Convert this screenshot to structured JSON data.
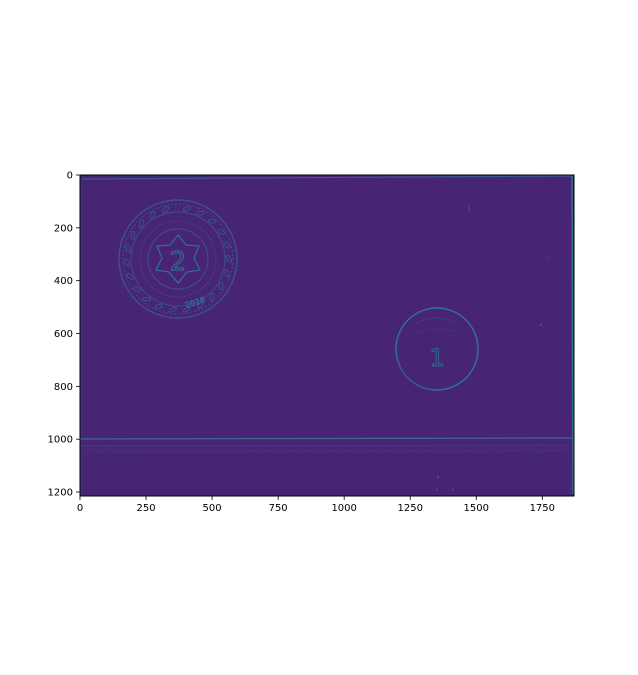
{
  "figure": {
    "background": "#ffffff",
    "image": {
      "description_icon": "edge-filtered-coins-image",
      "colormap": "viridis",
      "base_color": "#482475",
      "edge_color": "#3b528b",
      "bright_edge_color": "#2a788e",
      "width_units": 1870,
      "height_units": 1215
    },
    "x_axis": {
      "range": [
        0,
        1870
      ],
      "ticks": [
        0,
        250,
        500,
        750,
        1000,
        1250,
        1500,
        1750
      ],
      "tick_labels": [
        "0",
        "250",
        "500",
        "750",
        "1000",
        "1250",
        "1500",
        "1750"
      ]
    },
    "y_axis": {
      "range": [
        1215,
        0
      ],
      "ticks": [
        0,
        200,
        400,
        600,
        800,
        1000,
        1200
      ],
      "tick_labels": [
        "0",
        "200",
        "400",
        "600",
        "800",
        "1000",
        "1200"
      ]
    },
    "objects": {
      "large_coin": {
        "center": [
          370,
          320
        ],
        "radius": 225,
        "inscription": "2",
        "year": "2018"
      },
      "small_coin": {
        "center": [
          1350,
          660
        ],
        "radius": 150,
        "inscription": "1"
      }
    }
  }
}
